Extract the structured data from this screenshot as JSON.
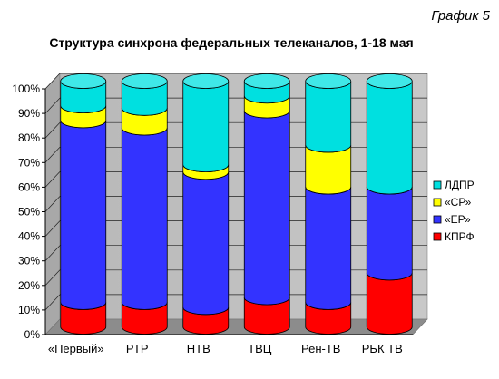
{
  "chart_data": {
    "type": "bar",
    "stacked": true,
    "percent_stacked": true,
    "figure_label": "График 5",
    "title": "Структура синхрона федеральных телеканалов, 1-18 мая",
    "xlabel": "",
    "ylabel": "",
    "ylim": [
      0,
      100
    ],
    "yticks": [
      "0%",
      "10%",
      "20%",
      "30%",
      "40%",
      "50%",
      "60%",
      "70%",
      "80%",
      "90%",
      "100%"
    ],
    "grid": true,
    "legend_position": "right",
    "categories": [
      "«Первый»",
      "РТР",
      "НТВ",
      "ТВЦ",
      "Рен-ТВ",
      "РБК ТВ"
    ],
    "series": [
      {
        "name": "КПРФ",
        "color": "#ff0000",
        "values": [
          10,
          10,
          8,
          12,
          10,
          22
        ]
      },
      {
        "name": "«ЕР»",
        "color": "#3333ff",
        "values": [
          74,
          71,
          55,
          76,
          47,
          35
        ]
      },
      {
        "name": "«СР»",
        "color": "#ffff00",
        "values": [
          6,
          8,
          3,
          6,
          17,
          0
        ]
      },
      {
        "name": "ЛДПР",
        "color": "#00e0e0",
        "values": [
          10,
          11,
          34,
          6,
          26,
          43
        ]
      }
    ],
    "plot_background": "#c0c0c0"
  }
}
